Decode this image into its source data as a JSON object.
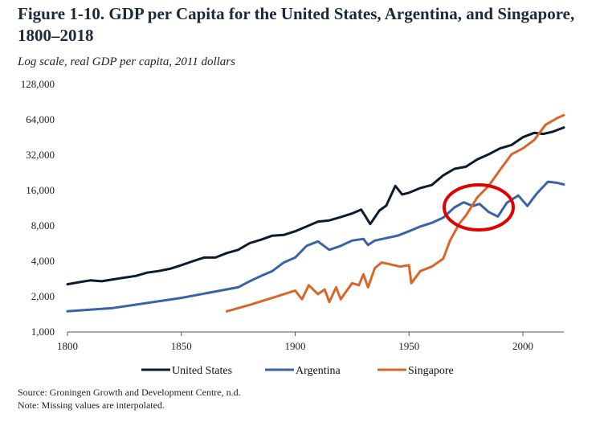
{
  "figure": {
    "title": "Figure 1-10. GDP per Capita for the United States, Argentina, and Singapore, 1800–2018",
    "subtitle": "Log scale, real GDP per capita, 2011 dollars",
    "source": "Source: Groningen Growth and Development Centre, n.d.",
    "note": "Note: Missing values are interpolated."
  },
  "chart_data": {
    "type": "line",
    "title": "Figure 1-10. GDP per Capita for the United States, Argentina, and Singapore, 1800–2018",
    "subtitle": "Log scale, real GDP per capita, 2011 dollars",
    "y_scale": "log2",
    "ylim": [
      1000,
      128000
    ],
    "xlim": [
      1800,
      2018
    ],
    "y_ticks": [
      1000,
      2000,
      4000,
      8000,
      16000,
      32000,
      64000,
      128000
    ],
    "y_tick_labels": [
      "1,000",
      "2,000",
      "4,000",
      "8,000",
      "16,000",
      "32,000",
      "64,000",
      "128,000"
    ],
    "x_ticks": [
      1800,
      1850,
      1900,
      1950,
      2000
    ],
    "x_tick_labels": [
      "1800",
      "1850",
      "1900",
      "1950",
      "2000"
    ],
    "grid": false,
    "legend_position": "bottom",
    "annotation": "red circle around the 1970–1990 crossover region",
    "series": [
      {
        "name": "United States",
        "color": "#0d1b2e",
        "points": [
          [
            1800,
            2550
          ],
          [
            1805,
            2650
          ],
          [
            1810,
            2750
          ],
          [
            1815,
            2700
          ],
          [
            1820,
            2800
          ],
          [
            1825,
            2900
          ],
          [
            1830,
            3000
          ],
          [
            1835,
            3200
          ],
          [
            1840,
            3300
          ],
          [
            1845,
            3450
          ],
          [
            1850,
            3700
          ],
          [
            1855,
            4000
          ],
          [
            1860,
            4300
          ],
          [
            1865,
            4300
          ],
          [
            1870,
            4700
          ],
          [
            1875,
            5000
          ],
          [
            1880,
            5700
          ],
          [
            1885,
            6100
          ],
          [
            1890,
            6600
          ],
          [
            1895,
            6700
          ],
          [
            1900,
            7200
          ],
          [
            1905,
            7900
          ],
          [
            1910,
            8700
          ],
          [
            1915,
            8900
          ],
          [
            1920,
            9500
          ],
          [
            1925,
            10200
          ],
          [
            1929,
            11000
          ],
          [
            1933,
            8300
          ],
          [
            1937,
            10800
          ],
          [
            1940,
            11900
          ],
          [
            1944,
            17500
          ],
          [
            1947,
            14800
          ],
          [
            1950,
            15300
          ],
          [
            1955,
            16800
          ],
          [
            1960,
            17800
          ],
          [
            1965,
            21500
          ],
          [
            1970,
            24500
          ],
          [
            1975,
            25500
          ],
          [
            1980,
            29500
          ],
          [
            1985,
            32500
          ],
          [
            1990,
            36500
          ],
          [
            1995,
            39000
          ],
          [
            2000,
            45500
          ],
          [
            2005,
            49500
          ],
          [
            2009,
            48500
          ],
          [
            2013,
            50500
          ],
          [
            2018,
            55000
          ]
        ]
      },
      {
        "name": "Argentina",
        "color": "#3a62a6",
        "points": [
          [
            1800,
            1500
          ],
          [
            1820,
            1600
          ],
          [
            1850,
            1950
          ],
          [
            1875,
            2400
          ],
          [
            1880,
            2700
          ],
          [
            1885,
            3000
          ],
          [
            1890,
            3300
          ],
          [
            1895,
            3900
          ],
          [
            1900,
            4300
          ],
          [
            1905,
            5400
          ],
          [
            1910,
            5900
          ],
          [
            1915,
            5000
          ],
          [
            1920,
            5400
          ],
          [
            1925,
            6000
          ],
          [
            1930,
            6200
          ],
          [
            1932,
            5500
          ],
          [
            1935,
            6000
          ],
          [
            1940,
            6300
          ],
          [
            1945,
            6600
          ],
          [
            1950,
            7200
          ],
          [
            1955,
            7900
          ],
          [
            1960,
            8500
          ],
          [
            1965,
            9400
          ],
          [
            1970,
            11500
          ],
          [
            1974,
            12700
          ],
          [
            1978,
            11800
          ],
          [
            1981,
            12300
          ],
          [
            1985,
            10500
          ],
          [
            1989,
            9600
          ],
          [
            1993,
            12600
          ],
          [
            1998,
            14500
          ],
          [
            2002,
            11800
          ],
          [
            2006,
            15000
          ],
          [
            2011,
            19000
          ],
          [
            2015,
            18600
          ],
          [
            2018,
            18000
          ]
        ]
      },
      {
        "name": "Singapore",
        "color": "#d9652b",
        "points": [
          [
            1870,
            1500
          ],
          [
            1880,
            1700
          ],
          [
            1890,
            1950
          ],
          [
            1900,
            2250
          ],
          [
            1903,
            1900
          ],
          [
            1906,
            2500
          ],
          [
            1910,
            2100
          ],
          [
            1913,
            2300
          ],
          [
            1915,
            1800
          ],
          [
            1918,
            2400
          ],
          [
            1920,
            1900
          ],
          [
            1925,
            2600
          ],
          [
            1928,
            2500
          ],
          [
            1930,
            3100
          ],
          [
            1932,
            2400
          ],
          [
            1935,
            3500
          ],
          [
            1938,
            3900
          ],
          [
            1941,
            3800
          ],
          [
            1946,
            3600
          ],
          [
            1950,
            3700
          ],
          [
            1951,
            2600
          ],
          [
            1955,
            3300
          ],
          [
            1960,
            3600
          ],
          [
            1965,
            4200
          ],
          [
            1968,
            6000
          ],
          [
            1972,
            8300
          ],
          [
            1975,
            9800
          ],
          [
            1980,
            14000
          ],
          [
            1985,
            17500
          ],
          [
            1990,
            24000
          ],
          [
            1995,
            32500
          ],
          [
            2000,
            36500
          ],
          [
            2005,
            43000
          ],
          [
            2010,
            58000
          ],
          [
            2015,
            66000
          ],
          [
            2018,
            70000
          ]
        ]
      }
    ]
  }
}
